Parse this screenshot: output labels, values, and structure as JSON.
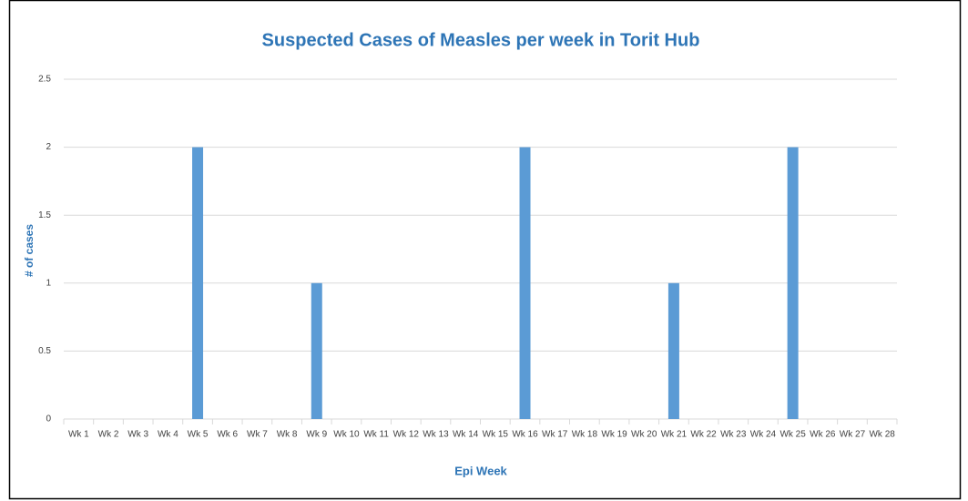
{
  "chart_data": {
    "type": "bar",
    "title": "Suspected Cases of Measles per week in Torit Hub",
    "x_label": "Epi Week",
    "y_label": "# of cases",
    "categories": [
      "Wk 1",
      "Wk 2",
      "Wk 3",
      "Wk 4",
      "Wk 5",
      "Wk 6",
      "Wk 7",
      "Wk 8",
      "Wk 9",
      "Wk 10",
      "Wk 11",
      "Wk 12",
      "Wk 13",
      "Wk 14",
      "Wk 15",
      "Wk 16",
      "Wk 17",
      "Wk 18",
      "Wk 19",
      "Wk 20",
      "Wk 21",
      "Wk 22",
      "Wk 23",
      "Wk 24",
      "Wk 25",
      "Wk 26",
      "Wk 27",
      "Wk 28"
    ],
    "values": [
      0,
      0,
      0,
      0,
      2,
      0,
      0,
      0,
      1,
      0,
      0,
      0,
      0,
      0,
      0,
      2,
      0,
      0,
      0,
      0,
      1,
      0,
      0,
      0,
      2,
      0,
      0,
      0
    ],
    "color": "#5b9bd5",
    "ylim": [
      0,
      2.5
    ],
    "yticks": [
      0,
      0.5,
      1,
      1.5,
      2,
      2.5
    ],
    "grid": true
  }
}
